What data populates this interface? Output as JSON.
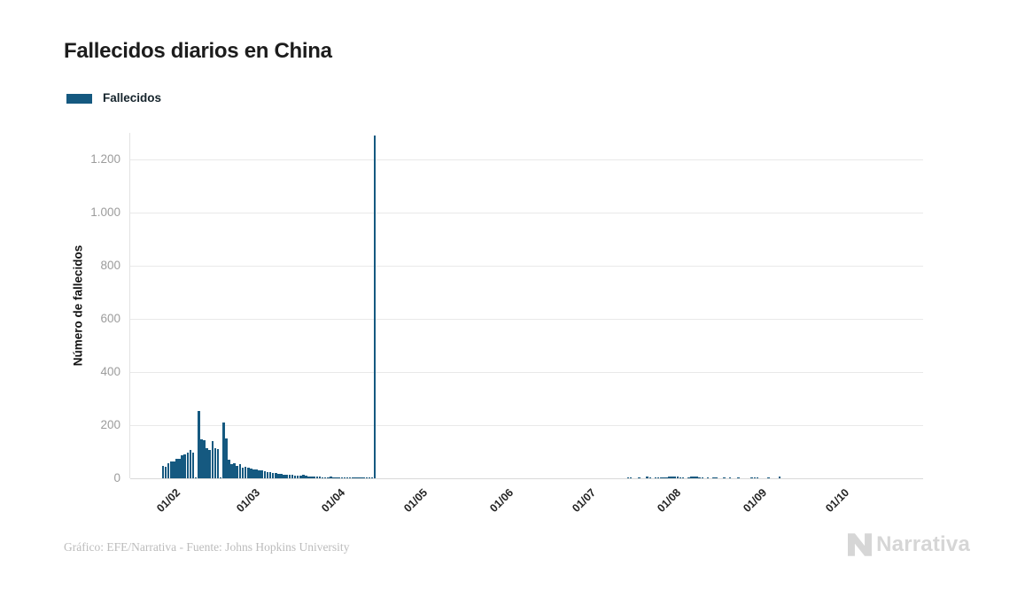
{
  "title": "Fallecidos diarios en China",
  "legend": {
    "label": "Fallecidos",
    "color": "#155980"
  },
  "footer": {
    "credit": "Gráfico: EFE/Narrativa - Fuente: Johns Hopkins University",
    "brand": "Narrativa"
  },
  "colors": {
    "bar": "#155980",
    "grid": "#e9e9e9",
    "axis": "#d9d9d9",
    "tick_text": "#9c9c9c",
    "title_text": "#1c1c1c",
    "muted_text": "#bcbcbc",
    "logo": "#d6d6d6"
  },
  "chart_data": {
    "type": "bar",
    "title": "Fallecidos diarios en China",
    "xlabel": "",
    "ylabel": "Número de fallecidos",
    "ylim": [
      0,
      1300
    ],
    "yticks": [
      0,
      200,
      400,
      600,
      800,
      1000,
      1200
    ],
    "ytick_labels": [
      "0",
      "200",
      "400",
      "600",
      "800",
      "1.000",
      "1.200"
    ],
    "xtick_labels": [
      "01/02",
      "01/03",
      "01/04",
      "01/05",
      "01/06",
      "01/07",
      "01/08",
      "01/09",
      "01/10"
    ],
    "grid": true,
    "legend_position": "top-left",
    "date_format": "DD/MM",
    "series": [
      {
        "name": "Fallecidos",
        "color": "#155980",
        "points": [
          [
            "31/01",
            46
          ],
          [
            "01/02",
            45
          ],
          [
            "02/02",
            57
          ],
          [
            "03/02",
            64
          ],
          [
            "04/02",
            65
          ],
          [
            "05/02",
            73
          ],
          [
            "06/02",
            73
          ],
          [
            "07/02",
            86
          ],
          [
            "08/02",
            89
          ],
          [
            "09/02",
            97
          ],
          [
            "10/02",
            108
          ],
          [
            "11/02",
            97
          ],
          [
            "12/02",
            5
          ],
          [
            "13/02",
            254
          ],
          [
            "14/02",
            146
          ],
          [
            "15/02",
            143
          ],
          [
            "16/02",
            112
          ],
          [
            "17/02",
            107
          ],
          [
            "18/02",
            139
          ],
          [
            "19/02",
            112
          ],
          [
            "20/02",
            110
          ],
          [
            "21/02",
            5
          ],
          [
            "22/02",
            210
          ],
          [
            "23/02",
            150
          ],
          [
            "24/02",
            70
          ],
          [
            "25/02",
            52
          ],
          [
            "26/02",
            58
          ],
          [
            "27/02",
            47
          ],
          [
            "28/02",
            52
          ],
          [
            "29/02",
            41
          ],
          [
            "01/03",
            42
          ],
          [
            "02/03",
            40
          ],
          [
            "03/03",
            38
          ],
          [
            "04/03",
            35
          ],
          [
            "05/03",
            33
          ],
          [
            "06/03",
            31
          ],
          [
            "07/03",
            29
          ],
          [
            "08/03",
            27
          ],
          [
            "09/03",
            25
          ],
          [
            "10/03",
            23
          ],
          [
            "11/03",
            21
          ],
          [
            "12/03",
            19
          ],
          [
            "13/03",
            18
          ],
          [
            "14/03",
            16
          ],
          [
            "15/03",
            15
          ],
          [
            "16/03",
            14
          ],
          [
            "17/03",
            13
          ],
          [
            "18/03",
            12
          ],
          [
            "19/03",
            11
          ],
          [
            "20/03",
            10
          ],
          [
            "21/03",
            10
          ],
          [
            "22/03",
            12
          ],
          [
            "23/03",
            9
          ],
          [
            "24/03",
            8
          ],
          [
            "25/03",
            7
          ],
          [
            "26/03",
            7
          ],
          [
            "27/03",
            6
          ],
          [
            "28/03",
            6
          ],
          [
            "29/03",
            5
          ],
          [
            "30/03",
            5
          ],
          [
            "31/03",
            4
          ],
          [
            "01/04",
            6
          ],
          [
            "02/04",
            5
          ],
          [
            "03/04",
            4
          ],
          [
            "04/04",
            4
          ],
          [
            "05/04",
            3
          ],
          [
            "06/04",
            3
          ],
          [
            "07/04",
            2
          ],
          [
            "08/04",
            2
          ],
          [
            "09/04",
            2
          ],
          [
            "10/04",
            1
          ],
          [
            "11/04",
            2
          ],
          [
            "12/04",
            1
          ],
          [
            "13/04",
            1
          ],
          [
            "14/04",
            1
          ],
          [
            "15/04",
            1
          ],
          [
            "16/04",
            1
          ],
          [
            "17/04",
            1290
          ],
          [
            "18/07",
            4
          ],
          [
            "19/07",
            1
          ],
          [
            "22/07",
            3
          ],
          [
            "25/07",
            8
          ],
          [
            "26/07",
            2
          ],
          [
            "28/07",
            4
          ],
          [
            "29/07",
            5
          ],
          [
            "30/07",
            4
          ],
          [
            "31/07",
            3
          ],
          [
            "01/08",
            5
          ],
          [
            "02/08",
            6
          ],
          [
            "03/08",
            7
          ],
          [
            "04/08",
            8
          ],
          [
            "05/08",
            6
          ],
          [
            "06/08",
            5
          ],
          [
            "07/08",
            4
          ],
          [
            "09/08",
            4
          ],
          [
            "10/08",
            6
          ],
          [
            "11/08",
            7
          ],
          [
            "12/08",
            6
          ],
          [
            "13/08",
            5
          ],
          [
            "14/08",
            4
          ],
          [
            "16/08",
            4
          ],
          [
            "18/08",
            4
          ],
          [
            "19/08",
            3
          ],
          [
            "22/08",
            3
          ],
          [
            "24/08",
            2
          ],
          [
            "27/08",
            2
          ],
          [
            "01/09",
            5
          ],
          [
            "02/09",
            4
          ],
          [
            "03/09",
            3
          ],
          [
            "07/09",
            3
          ],
          [
            "11/09",
            6
          ]
        ]
      }
    ]
  }
}
